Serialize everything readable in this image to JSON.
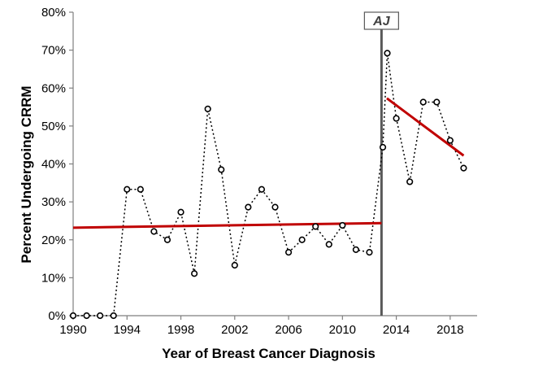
{
  "chart_data": {
    "type": "line",
    "title": "",
    "xlabel": "Year of Breast Cancer Diagnosis",
    "ylabel": "Percent Undergoing CRRM",
    "xlim": [
      1990,
      2020
    ],
    "ylim": [
      0,
      80
    ],
    "x_ticks": [
      1990,
      1994,
      1998,
      2002,
      2006,
      2010,
      2014,
      2018
    ],
    "x_tick_labels": [
      "1990",
      "1994",
      "1998",
      "2002",
      "2006",
      "2010",
      "2014",
      "2018"
    ],
    "y_ticks": [
      0,
      10,
      20,
      30,
      40,
      50,
      60,
      70,
      80
    ],
    "y_tick_labels": [
      "0%",
      "10%",
      "20%",
      "30%",
      "40%",
      "50%",
      "60%",
      "70%",
      "80%"
    ],
    "grid": false,
    "legend": "none",
    "series": [
      {
        "style": "dotted line with open circle markers",
        "color": "#000000",
        "x": [
          1990,
          1991,
          1992,
          1993,
          1994,
          1995,
          1996,
          1997,
          1998,
          1999,
          2000,
          2001,
          2002,
          2003,
          2004,
          2005,
          2006,
          2007,
          2008,
          2009,
          2010,
          2011,
          2012,
          2013,
          2013.33,
          2014,
          2015,
          2016,
          2017,
          2018,
          2019
        ],
        "y": [
          0,
          0,
          0,
          0,
          33.3,
          33.3,
          22.2,
          20,
          27.3,
          11.1,
          54.5,
          38.5,
          13.3,
          28.6,
          33.3,
          28.6,
          16.7,
          20,
          23.5,
          18.8,
          23.8,
          17.4,
          16.7,
          44.4,
          69.2,
          52,
          35.3,
          56.3,
          56.3,
          46.2,
          38.9
        ]
      },
      {
        "style": "trend line",
        "color": "#c00000",
        "x": [
          1990,
          2012.9
        ],
        "y": [
          23.2,
          24.4
        ]
      },
      {
        "style": "trend line",
        "color": "#c00000",
        "x": [
          2013.3,
          2019
        ],
        "y": [
          57.3,
          42.2
        ]
      }
    ],
    "annotations": [
      {
        "text": "AJ",
        "x": 2012.9,
        "style": "vertical grey line with boxed label"
      }
    ]
  }
}
